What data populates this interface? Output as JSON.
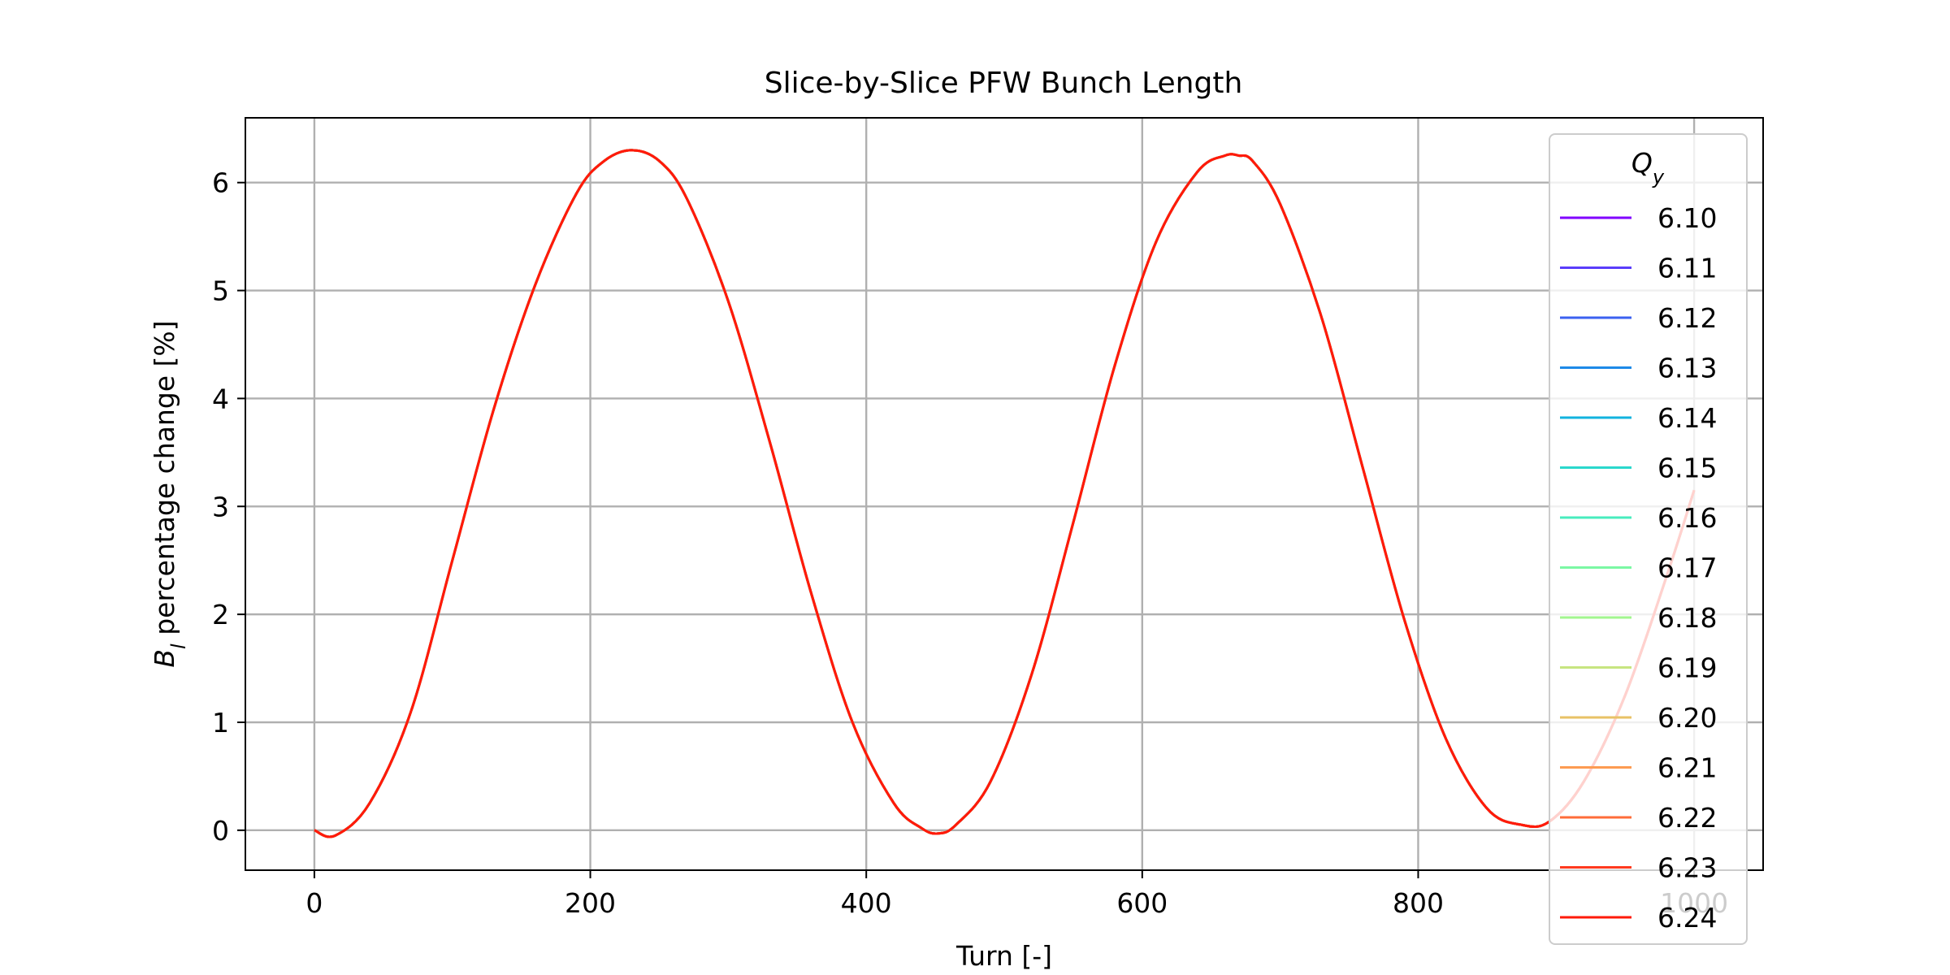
{
  "chart_data": {
    "type": "line",
    "title": "Slice-by-Slice PFW Bunch Length",
    "xlabel": "Turn [-]",
    "ylabel_main": "B",
    "ylabel_sub": "l",
    "ylabel_rest": " percentage change [%]",
    "xlim": [
      -50,
      1050
    ],
    "ylim": [
      -0.37,
      6.6
    ],
    "xticks": [
      0,
      200,
      400,
      600,
      800,
      1000
    ],
    "xtick_labels": [
      "0",
      "200",
      "400",
      "600",
      "800",
      "1000"
    ],
    "yticks": [
      0,
      1,
      2,
      3,
      4,
      5,
      6
    ],
    "ytick_labels": [
      "0",
      "1",
      "2",
      "3",
      "4",
      "5",
      "6"
    ],
    "grid": true,
    "legend": {
      "title_main": "Q",
      "title_sub": "y",
      "placement": "right"
    },
    "series": [
      {
        "name": "6.10",
        "color": "#8000ff"
      },
      {
        "name": "6.11",
        "color": "#5a3dfb"
      },
      {
        "name": "6.12",
        "color": "#3b61f0"
      },
      {
        "name": "6.13",
        "color": "#1e8ae8"
      },
      {
        "name": "6.14",
        "color": "#12b3df"
      },
      {
        "name": "6.15",
        "color": "#2ad8cd"
      },
      {
        "name": "6.16",
        "color": "#48ecbe"
      },
      {
        "name": "6.17",
        "color": "#7bf8a4"
      },
      {
        "name": "6.18",
        "color": "#a2f68f"
      },
      {
        "name": "6.19",
        "color": "#c7e580"
      },
      {
        "name": "6.20",
        "color": "#e8c266"
      },
      {
        "name": "6.21",
        "color": "#fd9b52"
      },
      {
        "name": "6.22",
        "color": "#ff6c39"
      },
      {
        "name": "6.23",
        "color": "#ff3a1f"
      },
      {
        "name": "6.24",
        "color": "#ff1a0a"
      }
    ],
    "curve": {
      "x": [
        0,
        15,
        40,
        70,
        100,
        130,
        160,
        190,
        210,
        230,
        250,
        270,
        300,
        330,
        360,
        390,
        420,
        440,
        452,
        465,
        490,
        520,
        550,
        580,
        610,
        640,
        660,
        670,
        680,
        700,
        730,
        760,
        790,
        820,
        850,
        875,
        895,
        920,
        950,
        980,
        1000
      ],
      "y": [
        0.0,
        -0.05,
        0.25,
        1.1,
        2.5,
        3.9,
        5.05,
        5.9,
        6.2,
        6.3,
        6.2,
        5.85,
        4.9,
        3.6,
        2.2,
        1.0,
        0.25,
        0.02,
        -0.03,
        0.05,
        0.45,
        1.45,
        2.85,
        4.3,
        5.45,
        6.1,
        6.25,
        6.25,
        6.2,
        5.8,
        4.75,
        3.35,
        1.95,
        0.85,
        0.2,
        0.05,
        0.08,
        0.45,
        1.25,
        2.35,
        3.15
      ]
    }
  }
}
